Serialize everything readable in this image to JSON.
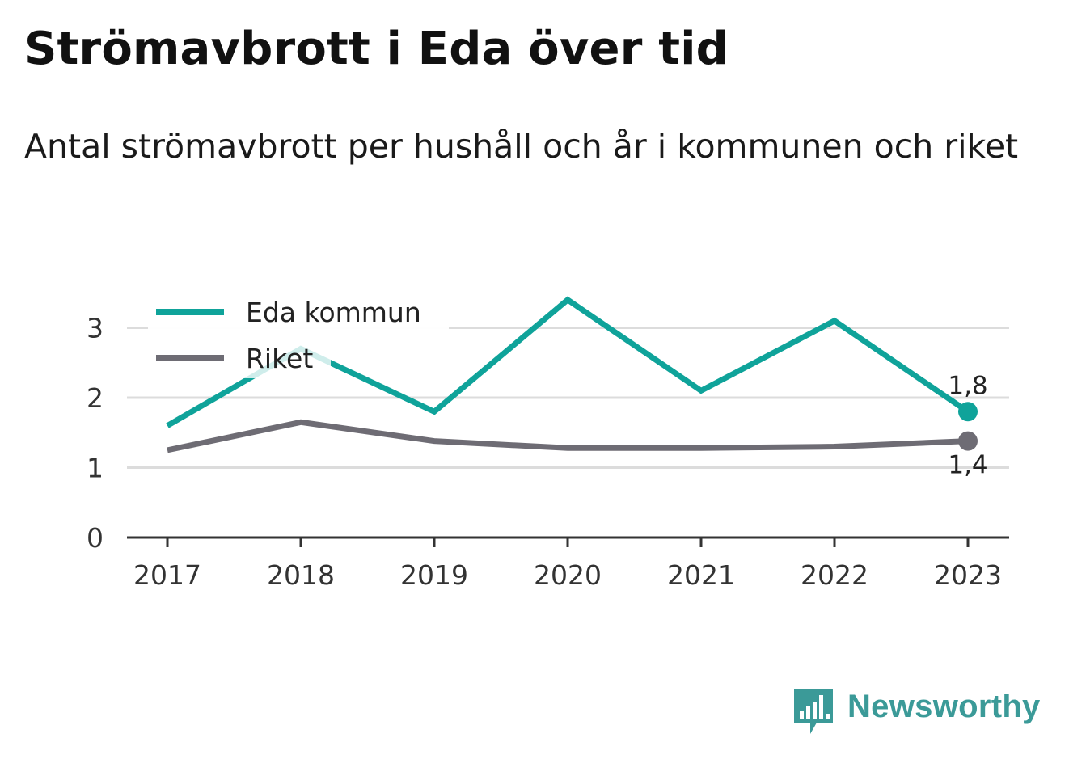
{
  "header": {
    "title": "Strömavbrott i Eda över tid",
    "subtitle": "Antal strömavbrott per hushåll och år i kommunen och riket"
  },
  "brand": {
    "name": "Newsworthy",
    "color": "#3b9a98"
  },
  "chart_data": {
    "type": "line",
    "x": [
      "2017",
      "2018",
      "2019",
      "2020",
      "2021",
      "2022",
      "2023"
    ],
    "ylim": [
      0,
      3.5
    ],
    "yticks": [
      "0",
      "1",
      "2",
      "3"
    ],
    "grid": true,
    "legend_position": "top-left",
    "series": [
      {
        "name": "Eda kommun",
        "color": "#0fa39a",
        "values": [
          1.6,
          2.7,
          1.8,
          3.4,
          2.1,
          3.1,
          1.8
        ],
        "end_label": "1,8"
      },
      {
        "name": "Riket",
        "color": "#6e6c74",
        "values": [
          1.25,
          1.65,
          1.38,
          1.28,
          1.28,
          1.3,
          1.38
        ],
        "end_label": "1,4"
      }
    ]
  }
}
